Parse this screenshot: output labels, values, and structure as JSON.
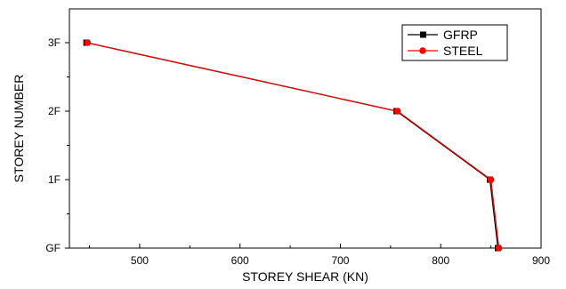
{
  "chart_data": {
    "type": "line",
    "xlabel": "STOREY SHEAR (KN)",
    "ylabel": "STOREY NUMBER",
    "xlim": [
      430,
      900
    ],
    "x_ticks": [
      500,
      600,
      700,
      800,
      900
    ],
    "y_categories": [
      "GF",
      "1F",
      "2F",
      "3F"
    ],
    "grid": false,
    "legend_position": "top-right",
    "series": [
      {
        "name": "GFRP",
        "color": "#000000",
        "marker": "square",
        "points": [
          {
            "x": 447,
            "y": "3F"
          },
          {
            "x": 756,
            "y": "2F"
          },
          {
            "x": 849,
            "y": "1F"
          },
          {
            "x": 857,
            "y": "GF"
          }
        ]
      },
      {
        "name": "STEEL",
        "color": "#ff0000",
        "marker": "circle",
        "points": [
          {
            "x": 448,
            "y": "3F"
          },
          {
            "x": 757,
            "y": "2F"
          },
          {
            "x": 850,
            "y": "1F"
          },
          {
            "x": 858,
            "y": "GF"
          }
        ]
      }
    ]
  }
}
